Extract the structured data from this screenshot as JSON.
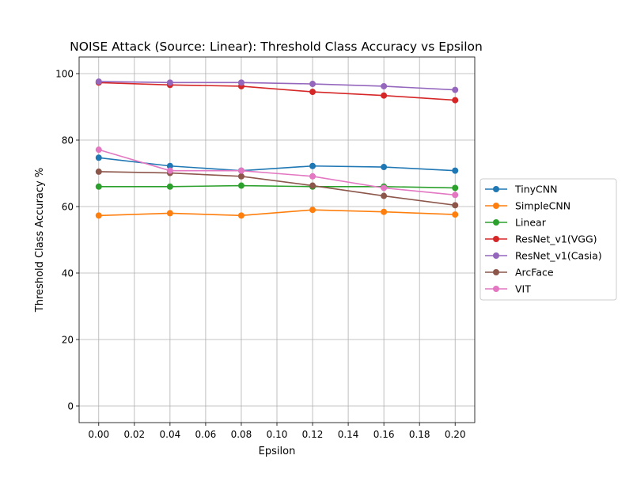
{
  "chart_data": {
    "type": "line",
    "title": "NOISE Attack (Source: Linear): Threshold Class Accuracy vs Epsilon",
    "xlabel": "Epsilon",
    "ylabel": "Threshold Class Accuracy %",
    "xlim": [
      -0.011,
      0.211
    ],
    "ylim": [
      -5,
      105
    ],
    "xticks": [
      0.0,
      0.02,
      0.04,
      0.06,
      0.08,
      0.1,
      0.12,
      0.14,
      0.16,
      0.18,
      0.2
    ],
    "xtick_labels": [
      "0.00",
      "0.02",
      "0.04",
      "0.06",
      "0.08",
      "0.10",
      "0.12",
      "0.14",
      "0.16",
      "0.18",
      "0.20"
    ],
    "yticks": [
      0,
      20,
      40,
      60,
      80,
      100
    ],
    "ytick_labels": [
      "0",
      "20",
      "40",
      "60",
      "80",
      "100"
    ],
    "grid": true,
    "legend_position": "outside-right",
    "x": [
      0.0,
      0.04,
      0.08,
      0.12,
      0.16,
      0.2
    ],
    "series": [
      {
        "name": "TinyCNN",
        "color": "#1f77b4",
        "values": [
          74.7,
          72.2,
          70.8,
          72.2,
          71.9,
          70.8
        ]
      },
      {
        "name": "SimpleCNN",
        "color": "#ff7f0e",
        "values": [
          57.3,
          58.0,
          57.3,
          59.0,
          58.4,
          57.6
        ]
      },
      {
        "name": "Linear",
        "color": "#2ca02c",
        "values": [
          66.0,
          66.0,
          66.3,
          66.0,
          66.0,
          65.6
        ]
      },
      {
        "name": "ResNet_v1(VGG)",
        "color": "#d62728",
        "values": [
          97.3,
          96.6,
          96.2,
          94.5,
          93.4,
          92.0
        ]
      },
      {
        "name": "ResNet_v1(Casia)",
        "color": "#9467bd",
        "values": [
          97.6,
          97.3,
          97.3,
          96.9,
          96.2,
          95.1
        ]
      },
      {
        "name": "ArcFace",
        "color": "#8c564b",
        "values": [
          70.5,
          70.1,
          69.1,
          66.3,
          63.2,
          60.4
        ]
      },
      {
        "name": "VIT",
        "color": "#e377c2",
        "values": [
          77.1,
          70.8,
          70.8,
          69.1,
          65.6,
          63.5
        ]
      }
    ]
  }
}
